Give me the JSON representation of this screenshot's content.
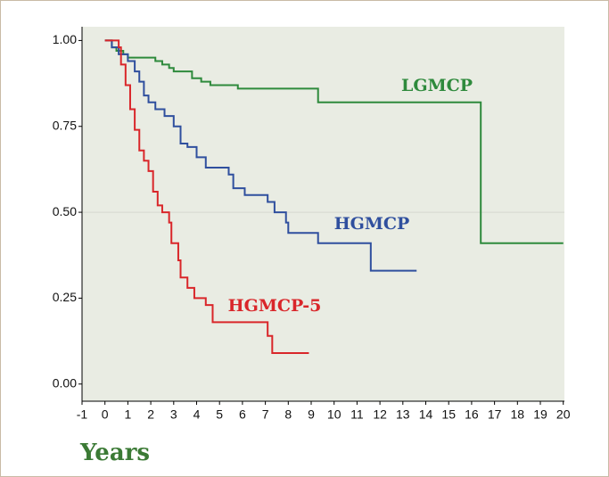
{
  "chart_data": {
    "type": "step",
    "x_label": "Years",
    "xlim": [
      -1,
      20.05
    ],
    "ylim": [
      -0.05,
      1.04
    ],
    "xticks": [
      -1,
      0,
      1,
      2,
      3,
      4,
      5,
      6,
      7,
      8,
      9,
      10,
      11,
      12,
      13,
      14,
      15,
      16,
      17,
      18,
      19,
      20
    ],
    "yticks": [
      {
        "value": 0,
        "label": "0.00"
      },
      {
        "value": 0.25,
        "label": "0.25"
      },
      {
        "value": 0.5,
        "label": "0.50"
      },
      {
        "value": 0.75,
        "label": "0.75"
      },
      {
        "value": 1,
        "label": "1.00"
      }
    ],
    "reference_line": 0.5,
    "series": [
      {
        "name": "LGMCP",
        "color": "#2e8a3c",
        "x": [
          0,
          0.3,
          0.5,
          0.8,
          1.0,
          2.2,
          2.5,
          2.8,
          3.0,
          3.8,
          4.2,
          4.6,
          5.8,
          9.3,
          16.4,
          20
        ],
        "values": [
          1.0,
          0.98,
          0.97,
          0.96,
          0.95,
          0.94,
          0.93,
          0.92,
          0.91,
          0.89,
          0.88,
          0.87,
          0.86,
          0.82,
          0.41,
          0.41
        ]
      },
      {
        "name": "HGMCP",
        "color": "#2f4f9e",
        "x": [
          0,
          0.3,
          0.6,
          1.0,
          1.3,
          1.5,
          1.7,
          1.9,
          2.2,
          2.6,
          3.0,
          3.3,
          3.6,
          4.0,
          4.4,
          5.4,
          5.6,
          6.1,
          7.1,
          7.4,
          7.9,
          8.0,
          9.3,
          11.6,
          13.6
        ],
        "values": [
          1.0,
          0.98,
          0.96,
          0.94,
          0.91,
          0.88,
          0.84,
          0.82,
          0.8,
          0.78,
          0.75,
          0.7,
          0.69,
          0.66,
          0.63,
          0.61,
          0.57,
          0.55,
          0.53,
          0.5,
          0.47,
          0.44,
          0.41,
          0.33,
          0.33
        ]
      },
      {
        "name": "HGMCP-5",
        "color": "#d9262a",
        "x": [
          0,
          0.6,
          0.7,
          0.9,
          1.1,
          1.3,
          1.5,
          1.7,
          1.9,
          2.1,
          2.3,
          2.5,
          2.8,
          2.9,
          3.2,
          3.3,
          3.6,
          3.9,
          4.4,
          4.7,
          7.1,
          7.3,
          8.9
        ],
        "values": [
          1.0,
          0.98,
          0.93,
          0.87,
          0.8,
          0.74,
          0.68,
          0.65,
          0.62,
          0.56,
          0.52,
          0.5,
          0.47,
          0.41,
          0.36,
          0.31,
          0.28,
          0.25,
          0.23,
          0.18,
          0.14,
          0.09,
          0.09
        ]
      }
    ]
  }
}
